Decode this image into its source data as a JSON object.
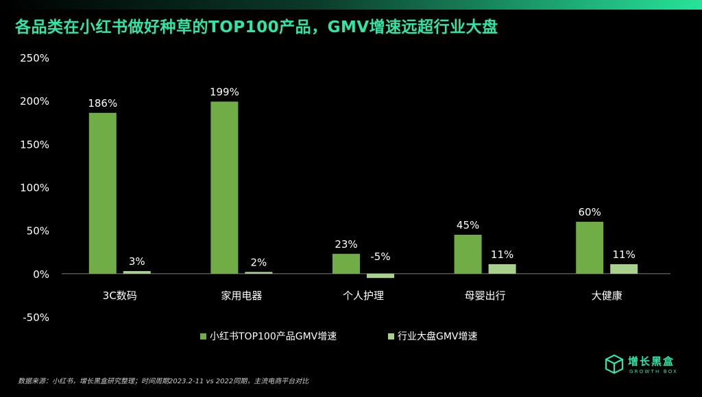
{
  "title": "各品类在小红书做好种草的TOP100产品，GMV增速远超行业大盘",
  "source_note": "数据来源：小红书，增长黑盒研究整理；时间周期2023.2-11 vs 2022同期，主流电商平台对比",
  "logo": {
    "name": "增长黑盒",
    "subtitle": "GROWTH BOX",
    "icon": "growth-box-cube-icon"
  },
  "colors": {
    "title": "#2ee6a6",
    "series_primary": "#70ad47",
    "series_secondary": "#a9d18e",
    "axis": "#7f7f7f"
  },
  "chart_data": {
    "type": "bar",
    "categories": [
      "3C数码",
      "家用电器",
      "个人护理",
      "母婴出行",
      "大健康"
    ],
    "series": [
      {
        "name": "小红书TOP100产品GMV增速",
        "values": [
          186,
          199,
          23,
          45,
          60
        ],
        "labels": [
          "186%",
          "199%",
          "23%",
          "45%",
          "60%"
        ]
      },
      {
        "name": "行业大盘GMV增速",
        "values": [
          3,
          2,
          -5,
          11,
          11
        ],
        "labels": [
          "3%",
          "2%",
          "-5%",
          "11%",
          "11%"
        ]
      }
    ],
    "ylim": [
      -50,
      250
    ],
    "yticks": [
      250,
      200,
      150,
      100,
      50,
      0,
      -50
    ],
    "ytick_labels": [
      "250%",
      "200%",
      "150%",
      "100%",
      "50%",
      "0%",
      "-50%"
    ],
    "legend_position": "bottom-center",
    "grid": false
  }
}
